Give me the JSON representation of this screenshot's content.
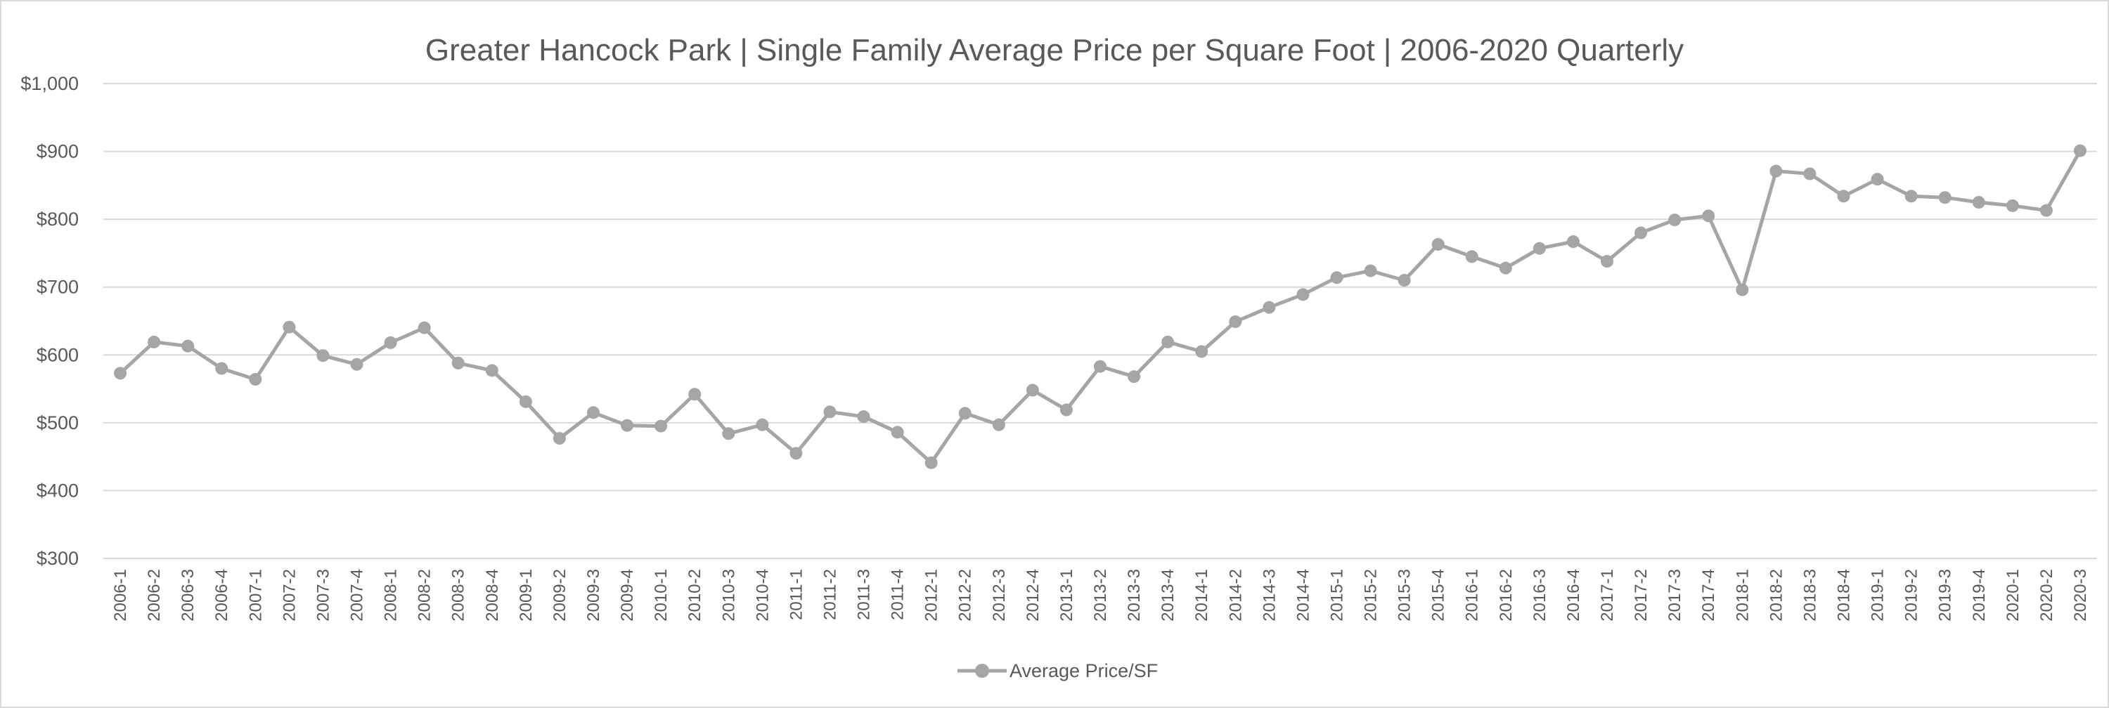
{
  "chart_data": {
    "type": "line",
    "title": "Greater Hancock Park | Single Family Average Price per Square Foot |  2006-2020 Quarterly",
    "xlabel": "",
    "ylabel": "",
    "ylim": [
      300,
      1000
    ],
    "y_ticks": [
      "$300",
      "$400",
      "$500",
      "$600",
      "$700",
      "$800",
      "$900",
      "$1,000"
    ],
    "grid": "horizontal",
    "legend_position": "bottom",
    "series_color": "#a5a5a5",
    "categories": [
      "2006-1",
      "2006-2",
      "2006-3",
      "2006-4",
      "2007-1",
      "2007-2",
      "2007-3",
      "2007-4",
      "2008-1",
      "2008-2",
      "2008-3",
      "2008-4",
      "2009-1",
      "2009-2",
      "2009-3",
      "2009-4",
      "2010-1",
      "2010-2",
      "2010-3",
      "2010-4",
      "2011-1",
      "2011-2",
      "2011-3",
      "2011-4",
      "2012-1",
      "2012-2",
      "2012-3",
      "2012-4",
      "2013-1",
      "2013-2",
      "2013-3",
      "2013-4",
      "2014-1",
      "2014-2",
      "2014-3",
      "2014-4",
      "2015-1",
      "2015-2",
      "2015-3",
      "2015-4",
      "2016-1",
      "2016-2",
      "2016-3",
      "2016-4",
      "2017-1",
      "2017-2",
      "2017-3",
      "2017-4",
      "2018-1",
      "2018-2",
      "2018-3",
      "2018-4",
      "2019-1",
      "2019-2",
      "2019-3",
      "2019-4",
      "2020-1",
      "2020-2",
      "2020-3"
    ],
    "series": [
      {
        "name": "Average Price/SF",
        "values": [
          573,
          619,
          613,
          580,
          564,
          641,
          599,
          586,
          618,
          640,
          588,
          577,
          531,
          477,
          515,
          496,
          495,
          542,
          484,
          497,
          455,
          516,
          509,
          486,
          441,
          514,
          497,
          548,
          519,
          583,
          568,
          619,
          605,
          649,
          670,
          689,
          714,
          724,
          710,
          763,
          745,
          728,
          757,
          767,
          738,
          780,
          799,
          805,
          696,
          871,
          867,
          834,
          859,
          834,
          832,
          825,
          820,
          813,
          901
        ]
      }
    ]
  }
}
